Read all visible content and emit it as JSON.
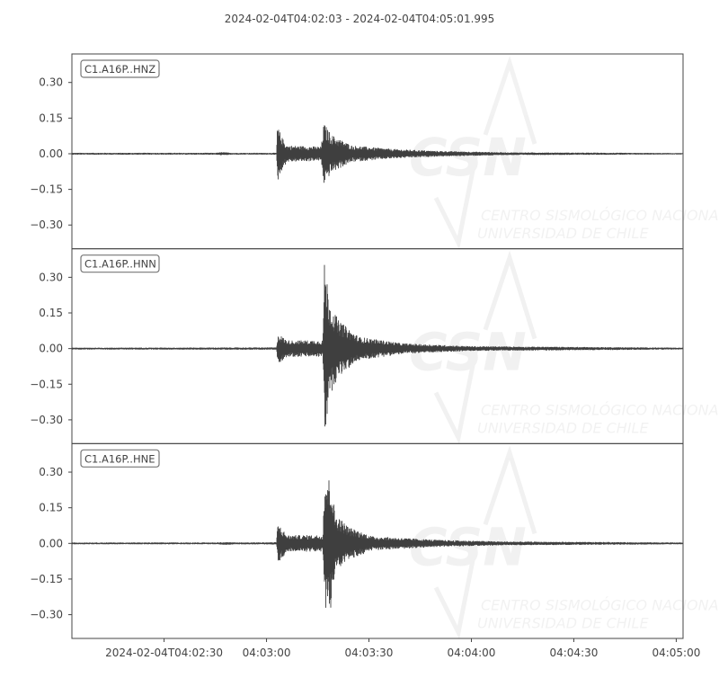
{
  "chart_data": {
    "type": "line",
    "title": "2024-02-04T04:02:03  -  2024-02-04T04:05:01.995",
    "start_time": "04:02:03",
    "end_time": "04:05:01.995",
    "x_ticks": [
      {
        "time": "04:02:30",
        "label": "2024-02-04T04:02:30"
      },
      {
        "time": "04:03:00",
        "label": "04:03:00"
      },
      {
        "time": "04:03:30",
        "label": "04:03:30"
      },
      {
        "time": "04:04:00",
        "label": "04:04:00"
      },
      {
        "time": "04:04:30",
        "label": "04:04:30"
      },
      {
        "time": "04:05:00",
        "label": "04:05:00"
      }
    ],
    "y_ticks": [
      0.3,
      0.15,
      0.0,
      -0.15,
      -0.3
    ],
    "y_tick_labels": [
      "0.30",
      "0.15",
      "0.00",
      "−0.15",
      "−0.30"
    ],
    "ylim": [
      -0.4,
      0.42
    ],
    "line_color": "#3f3f3f",
    "grid": false,
    "series": [
      {
        "name": "C1.A16P..HNZ",
        "envelope": [
          [
            "04:02:03",
            0.004
          ],
          [
            "04:02:45",
            0.004
          ],
          [
            "04:02:47",
            0.007
          ],
          [
            "04:02:50",
            0.004
          ],
          [
            "04:03:02.9",
            0.004
          ],
          [
            "04:03:03.2",
            0.12
          ],
          [
            "04:03:04.5",
            0.07
          ],
          [
            "04:03:06",
            0.035
          ],
          [
            "04:03:16",
            0.03
          ],
          [
            "04:03:16.8",
            0.13
          ],
          [
            "04:03:19",
            0.08
          ],
          [
            "04:03:25",
            0.035
          ],
          [
            "04:03:37",
            0.02
          ],
          [
            "04:03:50",
            0.012
          ],
          [
            "04:04:10",
            0.006
          ],
          [
            "04:05:02",
            0.003
          ]
        ]
      },
      {
        "name": "C1.A16P..HNN",
        "envelope": [
          [
            "04:02:03",
            0.004
          ],
          [
            "04:03:02.9",
            0.005
          ],
          [
            "04:03:03.3",
            0.065
          ],
          [
            "04:03:06",
            0.035
          ],
          [
            "04:03:16.5",
            0.035
          ],
          [
            "04:03:17",
            0.38
          ],
          [
            "04:03:18.5",
            0.2
          ],
          [
            "04:03:21",
            0.12
          ],
          [
            "04:03:27",
            0.05
          ],
          [
            "04:03:40",
            0.022
          ],
          [
            "04:04:00",
            0.01
          ],
          [
            "04:05:02",
            0.004
          ]
        ]
      },
      {
        "name": "C1.A16P..HNE",
        "envelope": [
          [
            "04:02:03",
            0.004
          ],
          [
            "04:02:45",
            0.004
          ],
          [
            "04:02:48",
            0.006
          ],
          [
            "04:02:51",
            0.004
          ],
          [
            "04:03:02.9",
            0.005
          ],
          [
            "04:03:03.3",
            0.085
          ],
          [
            "04:03:06",
            0.035
          ],
          [
            "04:03:16.5",
            0.035
          ],
          [
            "04:03:17",
            0.29
          ],
          [
            "04:03:19",
            0.27
          ],
          [
            "04:03:20",
            0.13
          ],
          [
            "04:03:24",
            0.07
          ],
          [
            "04:03:31",
            0.03
          ],
          [
            "04:03:50",
            0.015
          ],
          [
            "04:04:10",
            0.008
          ],
          [
            "04:05:02",
            0.004
          ]
        ]
      }
    ]
  },
  "watermark": {
    "logo": "CSN",
    "line1": "CENTRO SISMOLÓGICO NACIONAL",
    "line2": "UNIVERSIDAD DE CHILE"
  }
}
